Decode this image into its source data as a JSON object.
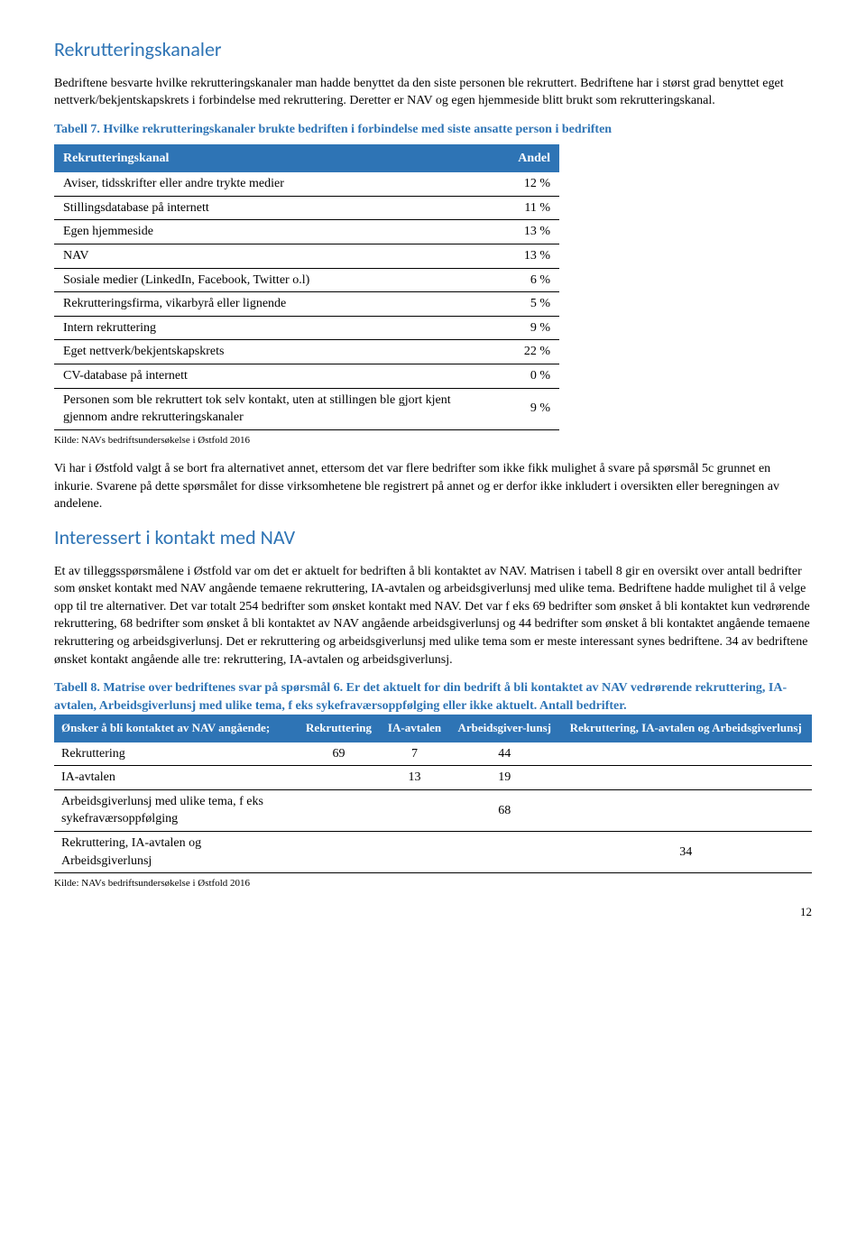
{
  "section1": {
    "heading": "Rekrutteringskanaler",
    "para1": "Bedriftene besvarte hvilke rekrutteringskanaler man hadde benyttet da den siste personen ble rekruttert. Bedriftene har i størst grad benyttet eget nettverk/bekjentskapskrets i forbindelse med rekruttering. Deretter er NAV og egen hjemmeside blitt brukt som rekrutteringskanal.",
    "table7_caption": "Tabell 7. Hvilke rekrutteringskanaler brukte bedriften i forbindelse med siste ansatte person i bedriften",
    "table7": {
      "header_kanal": "Rekrutteringskanal",
      "header_andel": "Andel",
      "rows": [
        {
          "label": "Aviser, tidsskrifter eller andre trykte medier",
          "value": "12 %"
        },
        {
          "label": "Stillingsdatabase på internett",
          "value": "11 %"
        },
        {
          "label": "Egen hjemmeside",
          "value": "13 %"
        },
        {
          "label": "NAV",
          "value": "13 %"
        },
        {
          "label": "Sosiale medier (LinkedIn, Facebook, Twitter o.l)",
          "value": "6 %"
        },
        {
          "label": "Rekrutteringsfirma, vikarbyrå eller lignende",
          "value": "5 %"
        },
        {
          "label": "Intern rekruttering",
          "value": "9 %"
        },
        {
          "label": "Eget nettverk/bekjentskapskrets",
          "value": "22 %"
        },
        {
          "label": "CV-database på internett",
          "value": "0 %"
        },
        {
          "label": "Personen som ble rekruttert tok selv kontakt, uten at stillingen ble gjort kjent gjennom andre rekrutteringskanaler",
          "value": "9 %"
        }
      ]
    },
    "source": "Kilde: NAVs bedriftsundersøkelse i Østfold 2016",
    "para2": "Vi har i Østfold valgt å se bort fra alternativet annet, ettersom det var flere bedrifter som ikke fikk mulighet å svare på spørsmål 5c grunnet en inkurie. Svarene på dette spørsmålet for disse virksomhetene ble registrert på annet og er derfor ikke inkludert i oversikten eller beregningen av andelene."
  },
  "section2": {
    "heading": "Interessert i kontakt med NAV",
    "para1": "Et av tilleggsspørsmålene i Østfold var om det er aktuelt for bedriften å bli kontaktet av NAV. Matrisen i tabell 8 gir en oversikt over antall bedrifter som ønsket kontakt med NAV angående temaene rekruttering, IA-avtalen og arbeidsgiverlunsj med ulike tema. Bedriftene hadde mulighet til å velge opp til tre alternativer. Det var totalt 254 bedrifter som ønsket kontakt med NAV. Det var f eks 69 bedrifter som ønsket å bli kontaktet kun vedrørende rekruttering, 68 bedrifter som ønsket å bli kontaktet av NAV angående arbeidsgiverlunsj og 44 bedrifter som ønsket å bli kontaktet angående temaene rekruttering og arbeidsgiverlunsj. Det er rekruttering og arbeidsgiverlunsj med ulike tema som er meste interessant synes bedriftene. 34 av bedriftene ønsket kontakt angående alle tre: rekruttering, IA-avtalen og arbeidsgiverlunsj.",
    "table8_caption_bold": "Tabell 8. Matrise over bedriftenes svar på spørsmål 6. Er det aktuelt for din bedrift å bli kontaktet av NAV",
    "table8_caption_rest": " vedrørende rekruttering, IA-avtalen, Arbeidsgiverlunsj med ulike tema, f eks sykefraværsoppfølging eller ikke aktuelt. Antall bedrifter.",
    "table8": {
      "header_row1_left": "Ønsker å bli kontaktet av NAV angående;",
      "header_cols": [
        "Rekruttering",
        "IA-avtalen",
        "Arbeidsgiver-lunsj",
        "Rekruttering, IA-avtalen og Arbeidsgiverlunsj"
      ],
      "rows": [
        {
          "label": "Rekruttering",
          "c1": "69",
          "c2": "7",
          "c3": "44",
          "c4": ""
        },
        {
          "label": "IA-avtalen",
          "c1": "",
          "c2": "13",
          "c3": "19",
          "c4": ""
        },
        {
          "label": "Arbeidsgiverlunsj med ulike tema, f eks sykefraværsoppfølging",
          "c1": "",
          "c2": "",
          "c3": "68",
          "c4": ""
        },
        {
          "label": "Rekruttering, IA-avtalen og Arbeidsgiverlunsj",
          "c1": "",
          "c2": "",
          "c3": "",
          "c4": "34"
        }
      ]
    },
    "source": "Kilde: NAVs bedriftsundersøkelse i Østfold 2016"
  },
  "page_number": "12"
}
